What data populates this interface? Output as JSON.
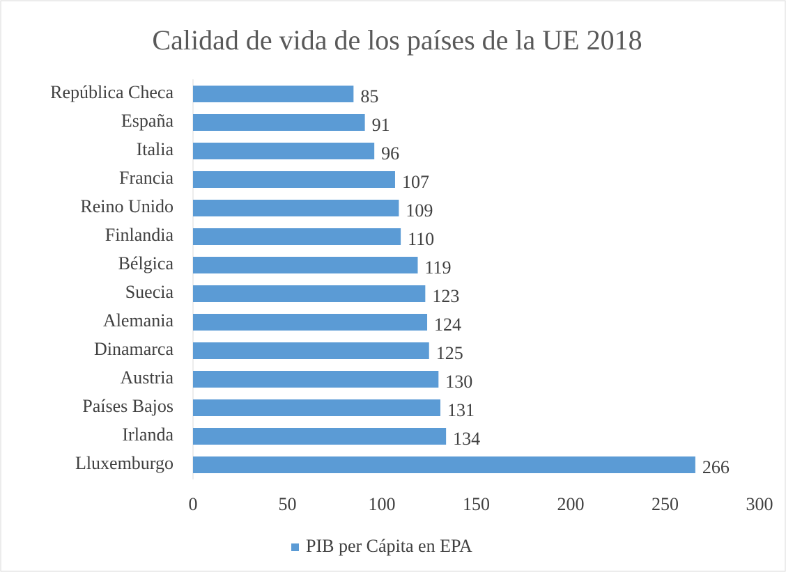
{
  "chart_data": {
    "type": "bar",
    "orientation": "horizontal",
    "title": "Calidad de vida de los países de la UE 2018",
    "categories": [
      "República Checa",
      "España",
      "Italia",
      "Francia",
      "Reino Unido",
      "Finlandia",
      "Bélgica",
      "Suecia",
      "Alemania",
      "Dinamarca",
      "Austria",
      "Países Bajos",
      "Irlanda",
      "Lluxemburgo"
    ],
    "series": [
      {
        "name": "PIB per Cápita en EPA",
        "color": "#5b9bd5",
        "values": [
          85,
          91,
          96,
          107,
          109,
          110,
          119,
          123,
          124,
          125,
          130,
          131,
          134,
          266
        ]
      }
    ],
    "xlim": [
      0,
      300
    ],
    "xticks": [
      0,
      50,
      100,
      150,
      200,
      250,
      300
    ],
    "grid": false,
    "legend": "bottom"
  }
}
